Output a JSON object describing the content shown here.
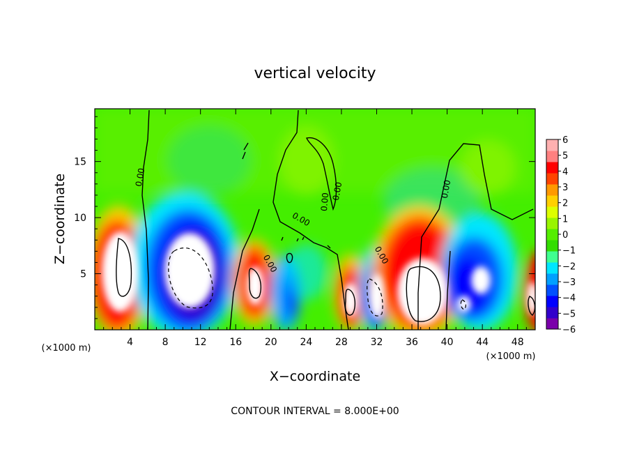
{
  "chart_data": {
    "type": "heatmap",
    "title": "vertical velocity",
    "xlabel": "X−coordinate",
    "ylabel": "Z−coordinate",
    "x_unit": "(×1000 m)",
    "x_unit_right": "(×1000 m)",
    "xlim": [
      0,
      50
    ],
    "ylim": [
      0,
      19.7
    ],
    "x_ticks": [
      4,
      8,
      12,
      16,
      20,
      24,
      28,
      32,
      36,
      40,
      44,
      48
    ],
    "y_ticks": [
      5,
      10,
      15
    ],
    "colorbar": {
      "min": -6,
      "max": 6,
      "ticks": [
        "6",
        "5",
        "4",
        "3",
        "2",
        "1",
        "0",
        "−1",
        "−2",
        "−3",
        "−4",
        "−5",
        "−6"
      ],
      "colors": [
        "#7a00aa",
        "#3300cc",
        "#0000ff",
        "#0050ff",
        "#00a0ff",
        "#00e6ff",
        "#40ff90",
        "#33dd00",
        "#55ee00",
        "#99f500",
        "#ddff00",
        "#ffd000",
        "#ff9900",
        "#ff4400",
        "#ff0000",
        "#ff8080",
        "#ffb0b0"
      ]
    },
    "contour_labels": [
      "0.00",
      "0.00",
      "0.00",
      "0.00",
      "0.00",
      "0.00",
      "0.00"
    ],
    "note": "CONTOUR INTERVAL = 8.000E+00",
    "features": [
      {
        "x": 2.5,
        "z": 6.0,
        "w": 10
      },
      {
        "x": 9.5,
        "z": 6.5,
        "w": -10
      },
      {
        "x": 11.5,
        "z": 4.2,
        "w": -14
      },
      {
        "x": 18.5,
        "z": 4.2,
        "w": 8
      },
      {
        "x": 22.5,
        "z": 4.5,
        "w": -3
      },
      {
        "x": 29.5,
        "z": 3.0,
        "w": 8
      },
      {
        "x": 31.7,
        "z": 3.0,
        "w": -9
      },
      {
        "x": 37.0,
        "z": 5.0,
        "w": 11
      },
      {
        "x": 42.5,
        "z": 4.8,
        "w": -6
      },
      {
        "x": 43.5,
        "z": 4.5,
        "w": 8
      },
      {
        "x": 49.5,
        "z": 3.0,
        "w": 7
      }
    ]
  }
}
